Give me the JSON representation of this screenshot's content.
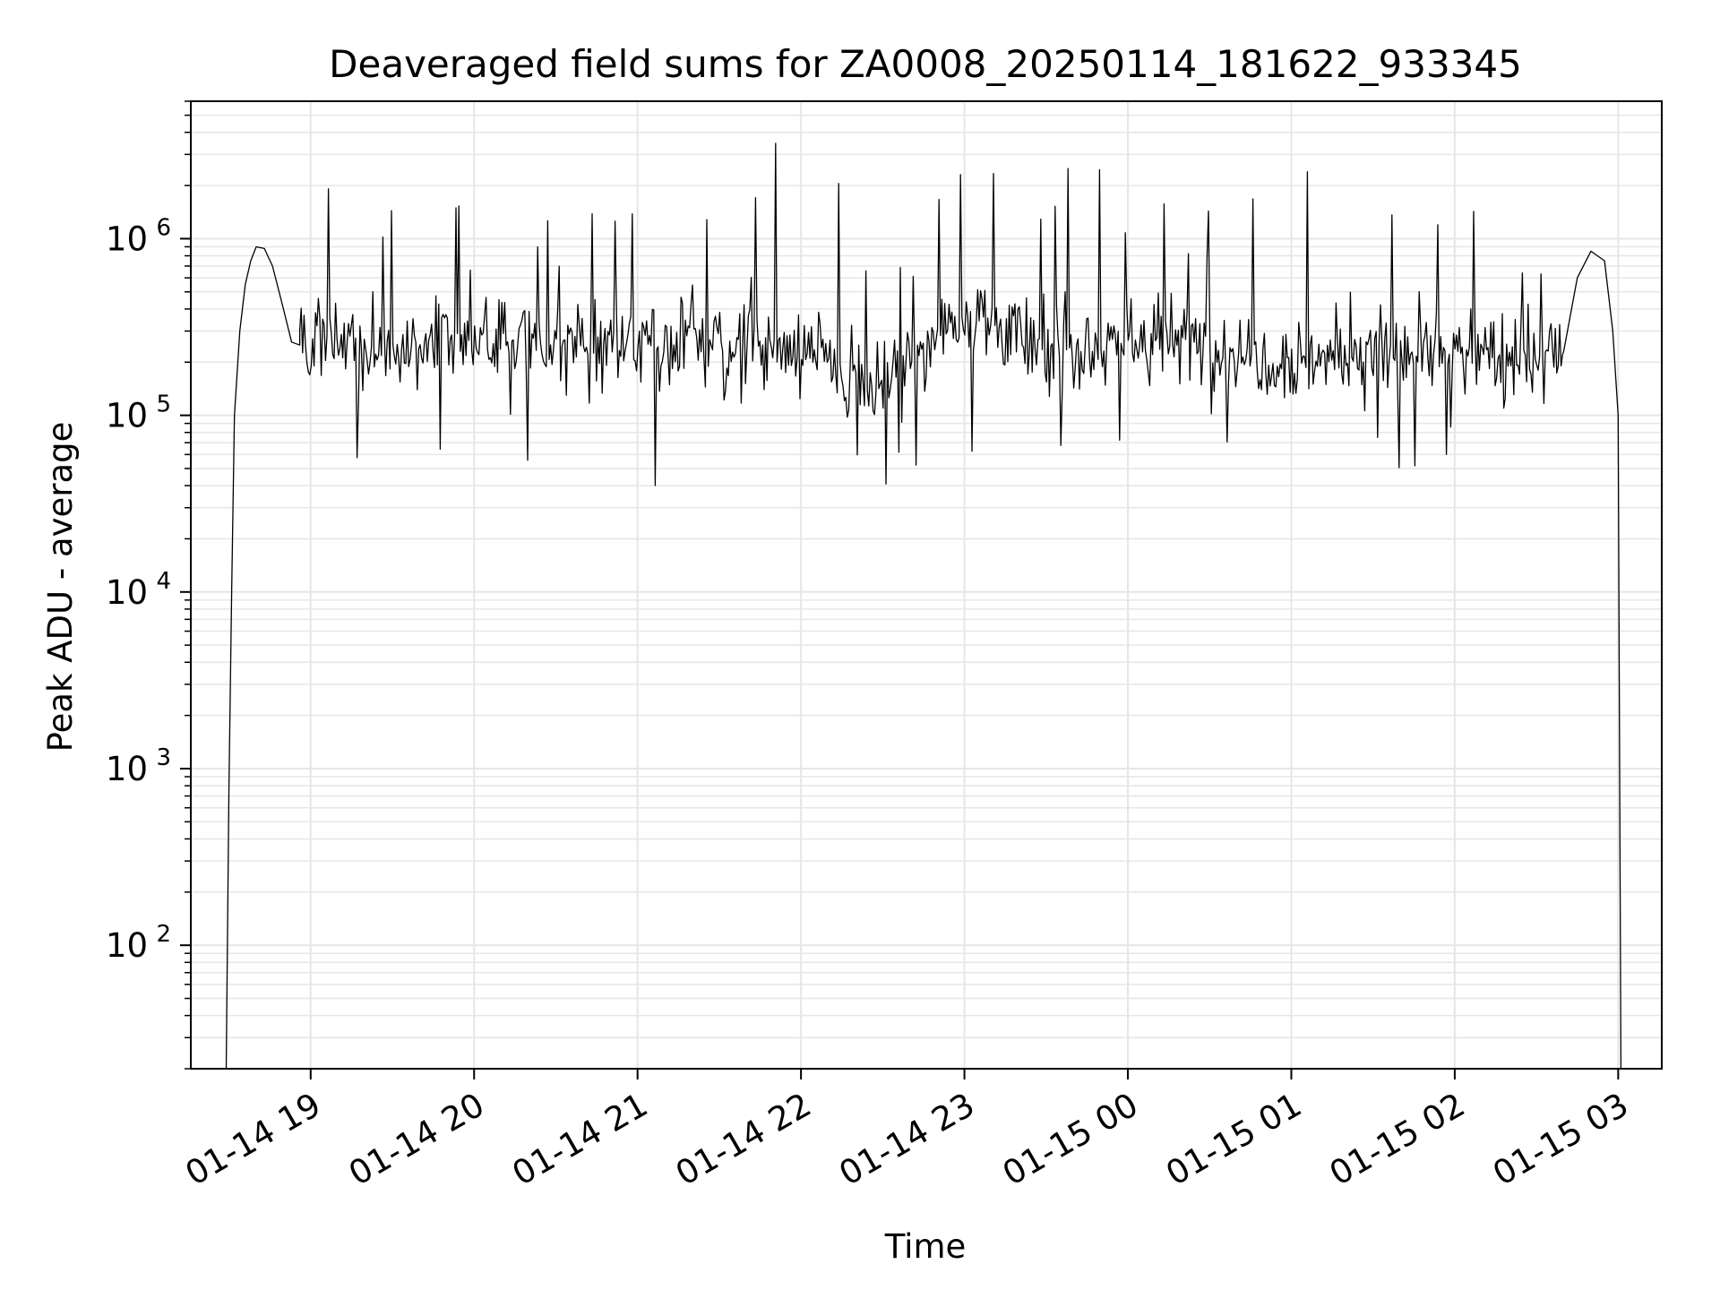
{
  "chart_data": {
    "type": "line",
    "title": "Deaveraged field sums for ZA0008_20250114_181622_933345",
    "xlabel": "Time",
    "ylabel": "Peak ADU - average",
    "yscale": "log",
    "ylim": [
      20,
      6000000
    ],
    "xlim": [
      "2025-01-14 18:16",
      "2025-01-15 03:16"
    ],
    "grid": true,
    "line_color": "#000000",
    "x_ticks": [
      {
        "label": "01-14 19",
        "value": "2025-01-14 19:00"
      },
      {
        "label": "01-14 20",
        "value": "2025-01-14 20:00"
      },
      {
        "label": "01-14 21",
        "value": "2025-01-14 21:00"
      },
      {
        "label": "01-14 22",
        "value": "2025-01-14 22:00"
      },
      {
        "label": "01-14 23",
        "value": "2025-01-14 23:00"
      },
      {
        "label": "01-15 00",
        "value": "2025-01-15 00:00"
      },
      {
        "label": "01-15 01",
        "value": "2025-01-15 01:00"
      },
      {
        "label": "01-15 02",
        "value": "2025-01-15 02:00"
      },
      {
        "label": "01-15 03",
        "value": "2025-01-15 03:00"
      }
    ],
    "y_ticks": [
      {
        "base": "10",
        "exp": "2",
        "value": 100
      },
      {
        "base": "10",
        "exp": "3",
        "value": 1000
      },
      {
        "base": "10",
        "exp": "4",
        "value": 10000
      },
      {
        "base": "10",
        "exp": "5",
        "value": 100000
      },
      {
        "base": "10",
        "exp": "6",
        "value": 1000000
      }
    ],
    "series": [
      {
        "x": [
          "2025-01-14 18:29",
          "2025-01-14 18:30",
          "2025-01-14 18:31",
          "2025-01-14 18:32",
          "2025-01-14 18:34",
          "2025-01-14 18:36",
          "2025-01-14 18:38",
          "2025-01-14 18:40",
          "2025-01-14 18:43",
          "2025-01-14 18:46",
          "2025-01-14 18:50",
          "2025-01-14 18:53",
          "2025-01-14 18:56",
          "2025-01-14 19:00",
          "2025-01-14 19:30",
          "2025-01-14 20:00",
          "2025-01-14 20:30",
          "2025-01-14 21:00",
          "2025-01-14 21:30",
          "2025-01-14 22:00",
          "2025-01-14 22:30",
          "2025-01-14 23:00",
          "2025-01-14 23:30",
          "2025-01-15 00:00",
          "2025-01-15 00:30",
          "2025-01-15 01:00",
          "2025-01-15 01:30",
          "2025-01-15 02:00",
          "2025-01-15 02:30",
          "2025-01-15 02:40",
          "2025-01-15 02:45",
          "2025-01-15 02:50",
          "2025-01-15 02:55",
          "2025-01-15 02:58",
          "2025-01-15 03:00",
          "2025-01-15 03:01"
        ],
        "values": [
          20,
          800,
          10000,
          100000,
          300000,
          550000,
          750000,
          900000,
          880000,
          700000,
          400000,
          260000,
          250000,
          250000,
          220000,
          270000,
          250000,
          280000,
          240000,
          230000,
          150000,
          400000,
          220000,
          280000,
          250000,
          210000,
          220000,
          230000,
          200000,
          230000,
          600000,
          850000,
          750000,
          300000,
          100000,
          20
        ]
      }
    ]
  }
}
